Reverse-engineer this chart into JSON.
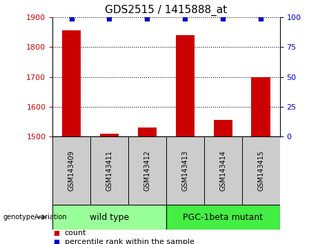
{
  "title": "GDS2515 / 1415888_at",
  "samples": [
    "GSM143409",
    "GSM143411",
    "GSM143412",
    "GSM143413",
    "GSM143414",
    "GSM143415"
  ],
  "counts": [
    1855,
    1510,
    1530,
    1840,
    1555,
    1700
  ],
  "percentiles": [
    99,
    99,
    99,
    99,
    99,
    99
  ],
  "ylim_left": [
    1500,
    1900
  ],
  "ylim_right": [
    0,
    100
  ],
  "yticks_left": [
    1500,
    1600,
    1700,
    1800,
    1900
  ],
  "yticks_right": [
    0,
    25,
    50,
    75,
    100
  ],
  "bar_color": "#cc0000",
  "percentile_color": "#0000cc",
  "groups": [
    {
      "label": "wild type",
      "indices": [
        0,
        1,
        2
      ],
      "color": "#99ff99"
    },
    {
      "label": "PGC-1beta mutant",
      "indices": [
        3,
        4,
        5
      ],
      "color": "#44ee44"
    }
  ],
  "group_label": "genotype/variation",
  "legend_items": [
    {
      "label": "count",
      "color": "#cc0000"
    },
    {
      "label": "percentile rank within the sample",
      "color": "#0000cc"
    }
  ],
  "bar_width": 0.5,
  "bg_color": "#cccccc",
  "title_fontsize": 11,
  "tick_fontsize": 8,
  "sample_fontsize": 7,
  "group_fontsize": 9,
  "legend_fontsize": 8
}
